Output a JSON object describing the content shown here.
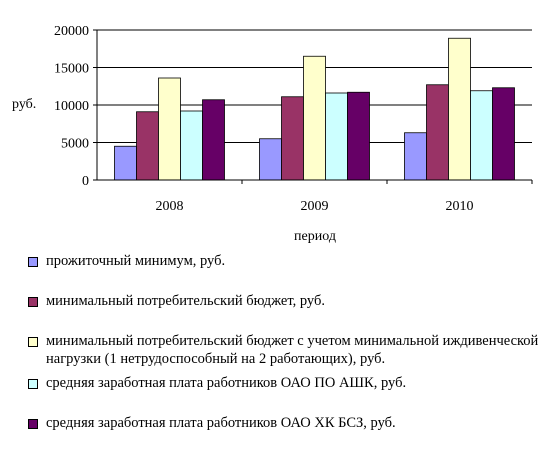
{
  "chart_data": {
    "type": "bar",
    "categories": [
      "2008",
      "2009",
      "2010"
    ],
    "series": [
      {
        "name": "прожиточный минимум, руб.",
        "values": [
          4500,
          5500,
          6300
        ],
        "color": "#9999ff"
      },
      {
        "name": "минимальный потребительский бюджет, руб.",
        "values": [
          9100,
          11100,
          12700
        ],
        "color": "#993366"
      },
      {
        "name": "минимальный потребительский бюджет с учетом минимальной иждивенческой нагрузки (1 нетрудоспособный на 2 работающих), руб.",
        "values": [
          13600,
          16500,
          18900
        ],
        "color": "#ffffcc"
      },
      {
        "name": "средняя заработная плата работников ОАО ПО АШК, руб.",
        "values": [
          9200,
          11600,
          11900
        ],
        "color": "#ccffff"
      },
      {
        "name": "средняя заработная плата работников ОАО ХК БСЗ, руб.",
        "values": [
          10700,
          11700,
          12300
        ],
        "color": "#660066"
      }
    ],
    "ylim": [
      0,
      20000
    ],
    "yticks": [
      "0",
      "5000",
      "10000",
      "15000",
      "20000"
    ],
    "ylabel": "руб.",
    "xlabel": "период",
    "grid": true,
    "legend_position": "bottom"
  }
}
